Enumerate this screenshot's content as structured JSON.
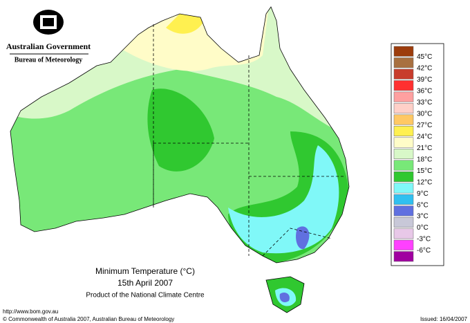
{
  "header": {
    "title": "Australian Government",
    "subtitle": "Bureau of Meteorology"
  },
  "map": {
    "title": "Minimum Temperature (°C)",
    "date": "15th April 2007",
    "product": "Product of the National Climate Centre"
  },
  "legend": {
    "labels": [
      "45°C",
      "42°C",
      "39°C",
      "36°C",
      "33°C",
      "30°C",
      "27°C",
      "24°C",
      "21°C",
      "18°C",
      "15°C",
      "12°C",
      "9°C",
      "6°C",
      "3°C",
      "0°C",
      "-3°C",
      "-6°C"
    ],
    "colors": [
      "#9c3c0c",
      "#a87040",
      "#c83c2c",
      "#ff3030",
      "#ffa0a0",
      "#ffd0c8",
      "#ffc864",
      "#fff050",
      "#fffcc8",
      "#d8f8c8",
      "#78e878",
      "#30c830",
      "#80f8f8",
      "#30c0f0",
      "#6070e0",
      "#c8c8d8",
      "#e8c8e8",
      "#ff40ff",
      "#a000a0"
    ]
  },
  "footer": {
    "url": "http://www.bom.gov.au",
    "copyright": "© Commonwealth of Australia 2007, Australian Bureau of Meteorology",
    "issued": "Issued: 16/04/2007"
  }
}
